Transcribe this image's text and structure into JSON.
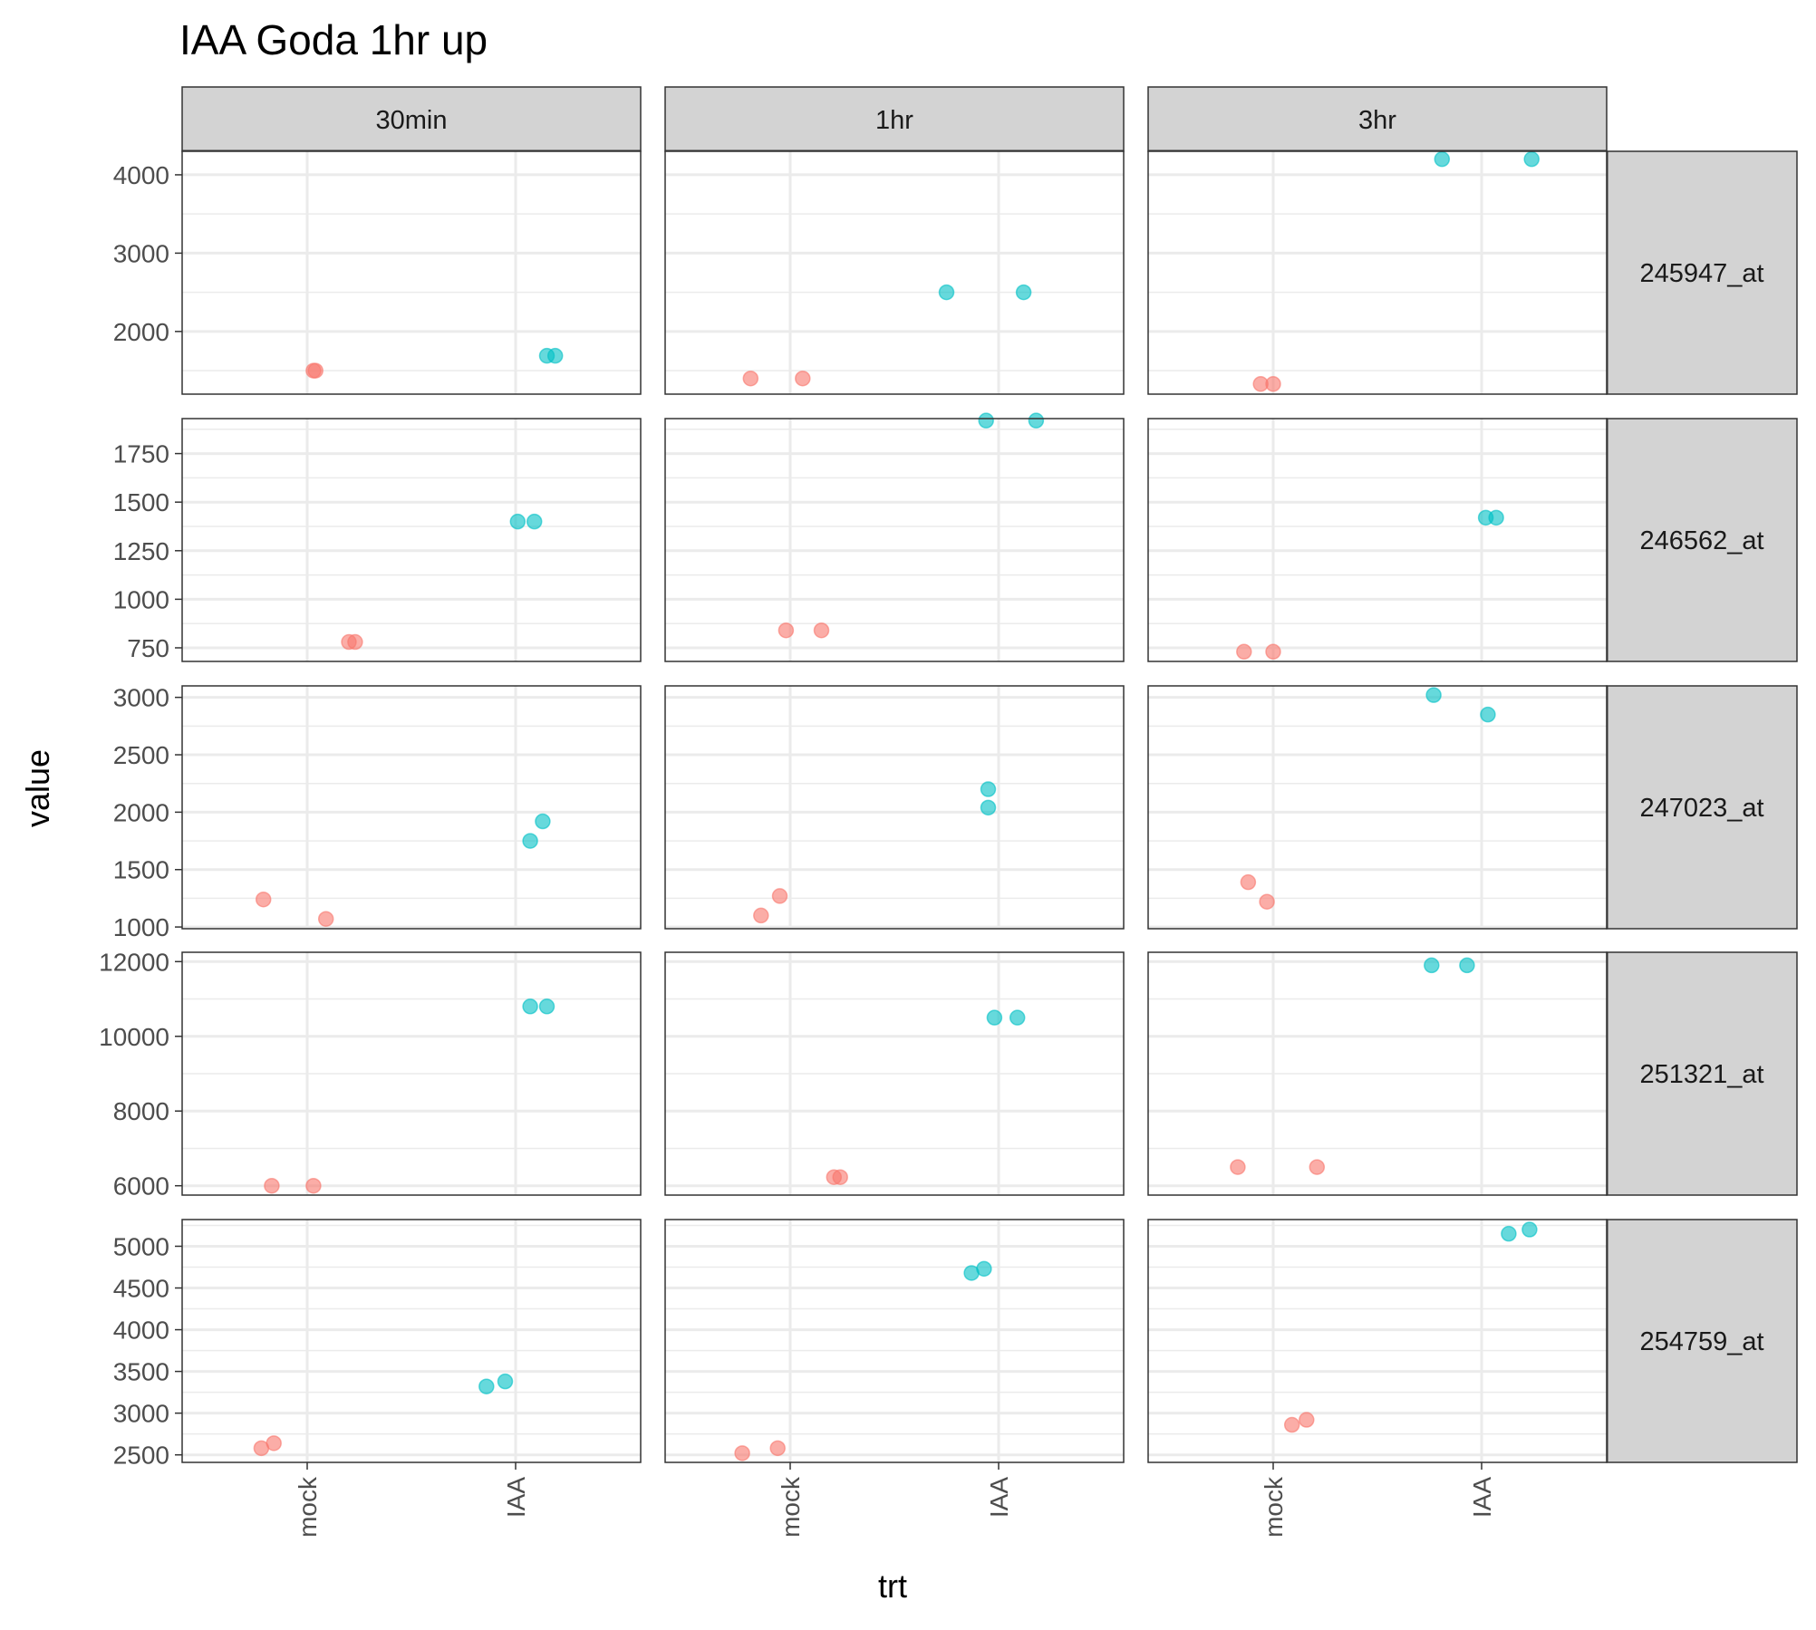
{
  "chart_data": {
    "type": "scatter",
    "title": "IAA Goda 1hr up",
    "xlabel": "trt",
    "ylabel": "value",
    "x_categories": [
      "mock",
      "IAA"
    ],
    "col_facets": [
      "30min",
      "1hr",
      "3hr"
    ],
    "row_facets": [
      "245947_at",
      "246562_at",
      "247023_at",
      "251321_at",
      "254759_at"
    ],
    "colors": {
      "mock": "#F8766D",
      "IAA": "#00BFC4"
    },
    "grid": true,
    "legend": "none",
    "rows": [
      {
        "label": "245947_at",
        "ylim": [
          1200,
          4300
        ],
        "yticks": [
          2000,
          3000,
          4000
        ],
        "panels": [
          {
            "facet": "30min",
            "points": [
              {
                "trt": "mock",
                "x": 1.03,
                "y": 1500
              },
              {
                "trt": "mock",
                "x": 1.04,
                "y": 1500
              },
              {
                "trt": "IAA",
                "x": 2.15,
                "y": 1690
              },
              {
                "trt": "IAA",
                "x": 2.19,
                "y": 1690
              }
            ]
          },
          {
            "facet": "1hr",
            "points": [
              {
                "trt": "mock",
                "x": 0.81,
                "y": 1400
              },
              {
                "trt": "mock",
                "x": 1.06,
                "y": 1400
              },
              {
                "trt": "IAA",
                "x": 1.75,
                "y": 2500
              },
              {
                "trt": "IAA",
                "x": 2.12,
                "y": 2500
              }
            ]
          },
          {
            "facet": "3hr",
            "points": [
              {
                "trt": "mock",
                "x": 0.94,
                "y": 1330
              },
              {
                "trt": "mock",
                "x": 1.0,
                "y": 1330
              },
              {
                "trt": "IAA",
                "x": 1.81,
                "y": 4200
              },
              {
                "trt": "IAA",
                "x": 2.24,
                "y": 4200
              }
            ]
          }
        ]
      },
      {
        "label": "246562_at",
        "ylim": [
          680,
          1930
        ],
        "yticks": [
          750,
          1000,
          1250,
          1500,
          1750
        ],
        "panels": [
          {
            "facet": "30min",
            "points": [
              {
                "trt": "mock",
                "x": 1.2,
                "y": 780
              },
              {
                "trt": "mock",
                "x": 1.23,
                "y": 780
              },
              {
                "trt": "IAA",
                "x": 2.01,
                "y": 1400
              },
              {
                "trt": "IAA",
                "x": 2.09,
                "y": 1400
              }
            ]
          },
          {
            "facet": "1hr",
            "points": [
              {
                "trt": "mock",
                "x": 0.98,
                "y": 840
              },
              {
                "trt": "mock",
                "x": 1.15,
                "y": 840
              },
              {
                "trt": "IAA",
                "x": 1.94,
                "y": 1920
              },
              {
                "trt": "IAA",
                "x": 2.18,
                "y": 1920
              }
            ]
          },
          {
            "facet": "3hr",
            "points": [
              {
                "trt": "mock",
                "x": 0.86,
                "y": 730
              },
              {
                "trt": "mock",
                "x": 1.0,
                "y": 730
              },
              {
                "trt": "IAA",
                "x": 2.02,
                "y": 1420
              },
              {
                "trt": "IAA",
                "x": 2.07,
                "y": 1420
              }
            ]
          }
        ]
      },
      {
        "label": "247023_at",
        "ylim": [
          985,
          3100
        ],
        "yticks": [
          1000,
          1500,
          2000,
          2500,
          3000
        ],
        "panels": [
          {
            "facet": "30min",
            "points": [
              {
                "trt": "mock",
                "x": 0.79,
                "y": 1240
              },
              {
                "trt": "mock",
                "x": 1.09,
                "y": 1070
              },
              {
                "trt": "IAA",
                "x": 2.07,
                "y": 1750
              },
              {
                "trt": "IAA",
                "x": 2.13,
                "y": 1920
              }
            ]
          },
          {
            "facet": "1hr",
            "points": [
              {
                "trt": "mock",
                "x": 0.86,
                "y": 1100
              },
              {
                "trt": "mock",
                "x": 0.95,
                "y": 1270
              },
              {
                "trt": "IAA",
                "x": 1.95,
                "y": 2040
              },
              {
                "trt": "IAA",
                "x": 1.95,
                "y": 2200
              }
            ]
          },
          {
            "facet": "3hr",
            "points": [
              {
                "trt": "mock",
                "x": 0.88,
                "y": 1390
              },
              {
                "trt": "mock",
                "x": 0.97,
                "y": 1220
              },
              {
                "trt": "IAA",
                "x": 1.77,
                "y": 3020
              },
              {
                "trt": "IAA",
                "x": 2.03,
                "y": 2850
              }
            ]
          }
        ]
      },
      {
        "label": "251321_at",
        "ylim": [
          5750,
          12250
        ],
        "yticks": [
          6000,
          8000,
          10000,
          12000
        ],
        "panels": [
          {
            "facet": "30min",
            "points": [
              {
                "trt": "mock",
                "x": 0.83,
                "y": 6000
              },
              {
                "trt": "mock",
                "x": 1.03,
                "y": 6000
              },
              {
                "trt": "IAA",
                "x": 2.07,
                "y": 10800
              },
              {
                "trt": "IAA",
                "x": 2.15,
                "y": 10800
              }
            ]
          },
          {
            "facet": "1hr",
            "points": [
              {
                "trt": "mock",
                "x": 1.21,
                "y": 6230
              },
              {
                "trt": "mock",
                "x": 1.24,
                "y": 6230
              },
              {
                "trt": "IAA",
                "x": 1.98,
                "y": 10500
              },
              {
                "trt": "IAA",
                "x": 2.09,
                "y": 10500
              }
            ]
          },
          {
            "facet": "3hr",
            "points": [
              {
                "trt": "mock",
                "x": 0.83,
                "y": 6500
              },
              {
                "trt": "mock",
                "x": 1.21,
                "y": 6500
              },
              {
                "trt": "IAA",
                "x": 1.76,
                "y": 11900
              },
              {
                "trt": "IAA",
                "x": 1.93,
                "y": 11900
              }
            ]
          }
        ]
      },
      {
        "label": "254759_at",
        "ylim": [
          2410,
          5320
        ],
        "yticks": [
          2500,
          3000,
          3500,
          4000,
          4500,
          5000
        ],
        "panels": [
          {
            "facet": "30min",
            "points": [
              {
                "trt": "mock",
                "x": 0.78,
                "y": 2580
              },
              {
                "trt": "mock",
                "x": 0.84,
                "y": 2640
              },
              {
                "trt": "IAA",
                "x": 1.86,
                "y": 3320
              },
              {
                "trt": "IAA",
                "x": 1.95,
                "y": 3380
              }
            ]
          },
          {
            "facet": "1hr",
            "points": [
              {
                "trt": "mock",
                "x": 0.77,
                "y": 2520
              },
              {
                "trt": "mock",
                "x": 0.94,
                "y": 2580
              },
              {
                "trt": "IAA",
                "x": 1.87,
                "y": 4680
              },
              {
                "trt": "IAA",
                "x": 1.93,
                "y": 4730
              }
            ]
          },
          {
            "facet": "3hr",
            "points": [
              {
                "trt": "mock",
                "x": 1.09,
                "y": 2860
              },
              {
                "trt": "mock",
                "x": 1.16,
                "y": 2920
              },
              {
                "trt": "IAA",
                "x": 2.13,
                "y": 5150
              },
              {
                "trt": "IAA",
                "x": 2.23,
                "y": 5200
              }
            ]
          }
        ]
      }
    ]
  }
}
